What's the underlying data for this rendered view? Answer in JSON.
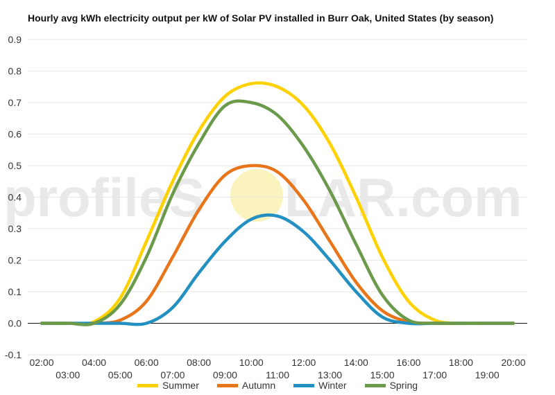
{
  "chart_data": {
    "type": "line",
    "title": "Hourly avg kWh electricity output per kW of Solar PV installed in Burr Oak, United States (by season)",
    "x": [
      2,
      3,
      4,
      5,
      6,
      7,
      8,
      9,
      10,
      11,
      12,
      13,
      14,
      15,
      16,
      17,
      18,
      19,
      20
    ],
    "x_ticks_upper": [
      "02:00",
      "04:00",
      "06:00",
      "08:00",
      "10:00",
      "12:00",
      "14:00",
      "16:00",
      "18:00",
      "20:00"
    ],
    "x_ticks_lower": [
      "03:00",
      "05:00",
      "07:00",
      "09:00",
      "11:00",
      "13:00",
      "15:00",
      "17:00",
      "19:00"
    ],
    "ylim": [
      -0.1,
      0.9
    ],
    "y_ticks": [
      "-0.1",
      "0.0",
      "0.1",
      "0.2",
      "0.3",
      "0.4",
      "0.5",
      "0.6",
      "0.7",
      "0.8",
      "0.9"
    ],
    "grid": true,
    "legend_position": "bottom",
    "series": [
      {
        "name": "Summer",
        "color": "#FFD100",
        "values": [
          0,
          0,
          0.005,
          0.08,
          0.26,
          0.45,
          0.61,
          0.72,
          0.76,
          0.75,
          0.69,
          0.57,
          0.4,
          0.21,
          0.07,
          0.01,
          0,
          0,
          0
        ]
      },
      {
        "name": "Autumn",
        "color": "#E8751A",
        "values": [
          0,
          0,
          0,
          0.01,
          0.07,
          0.21,
          0.36,
          0.47,
          0.5,
          0.48,
          0.39,
          0.26,
          0.13,
          0.04,
          0.005,
          0,
          0,
          0,
          0
        ]
      },
      {
        "name": "Winter",
        "color": "#2290C0",
        "values": [
          0,
          0,
          0,
          0,
          0,
          0.05,
          0.16,
          0.26,
          0.33,
          0.34,
          0.29,
          0.2,
          0.1,
          0.02,
          0,
          0,
          0,
          0,
          0
        ]
      },
      {
        "name": "Spring",
        "color": "#6A9A4A",
        "values": [
          0,
          0,
          0,
          0.06,
          0.21,
          0.41,
          0.57,
          0.69,
          0.7,
          0.66,
          0.56,
          0.42,
          0.25,
          0.09,
          0.01,
          0,
          0,
          0,
          0
        ]
      }
    ]
  },
  "watermark": {
    "left": "profileS",
    "right": "LAR.com",
    "sun_color": "#F4E46C"
  }
}
